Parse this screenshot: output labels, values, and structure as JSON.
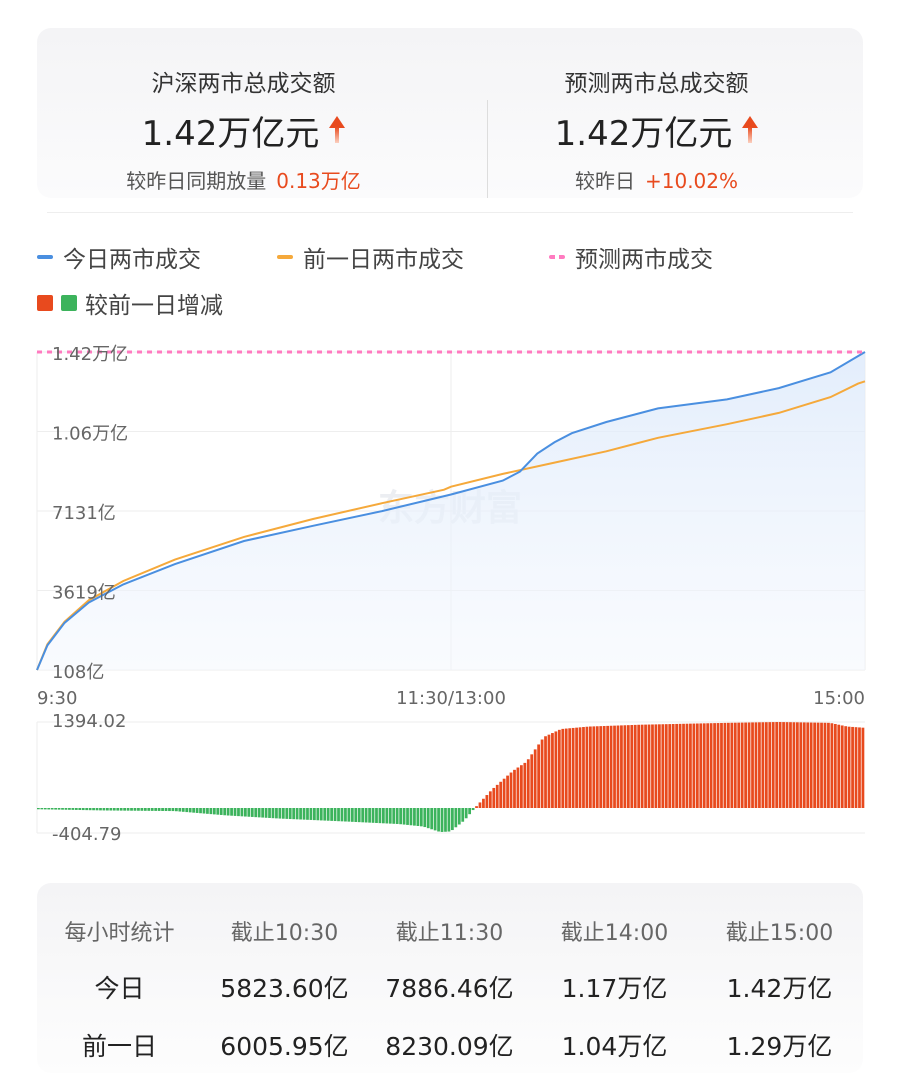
{
  "summary": {
    "left": {
      "title": "沪深两市总成交额",
      "value": "1.42万亿元",
      "compare_label": "较昨日同期放量",
      "compare_value": "0.13万亿"
    },
    "right": {
      "title": "预测两市总成交额",
      "value": "1.42万亿元",
      "compare_label": "较昨日",
      "compare_value": "+10.02%"
    }
  },
  "legend": {
    "today": "今日两市成交",
    "yesterday": "前一日两市成交",
    "forecast": "预测两市成交",
    "diff": "较前一日增减"
  },
  "colors": {
    "today": "#4a8fe0",
    "yesterday": "#f5a93b",
    "forecast": "#ff7bc0",
    "up": "#e84a1e",
    "down": "#3cb35c",
    "accent": "#e84a1e"
  },
  "watermark": "东方财富",
  "chart_data": [
    {
      "type": "line",
      "x_unit": "minutes since 9:30 (trading time)",
      "xlim": [
        0,
        240
      ],
      "x_ticks": [
        "9:30",
        "11:30/13:00",
        "15:00"
      ],
      "y_ticks": [
        "108亿",
        "3619亿",
        "7131亿",
        "1.06万亿",
        "1.42万亿"
      ],
      "ylim": [
        108,
        14200
      ],
      "y_unit": "亿",
      "grid": true,
      "forecast_value": 14200,
      "series": [
        {
          "name": "今日两市成交",
          "x": [
            0,
            3,
            8,
            15,
            25,
            40,
            60,
            80,
            100,
            120,
            135,
            140,
            145,
            150,
            155,
            165,
            180,
            200,
            215,
            230,
            240
          ],
          "values": [
            108,
            1200,
            2200,
            3100,
            3900,
            4800,
            5824,
            6500,
            7150,
            7886,
            8500,
            8900,
            9700,
            10200,
            10600,
            11100,
            11700,
            12100,
            12600,
            13300,
            14200
          ]
        },
        {
          "name": "前一日两市成交",
          "x": [
            0,
            3,
            8,
            15,
            25,
            40,
            60,
            80,
            100,
            118,
            120,
            135,
            150,
            165,
            180,
            200,
            215,
            230,
            238,
            240
          ],
          "values": [
            108,
            1250,
            2250,
            3200,
            4050,
            5000,
            6006,
            6800,
            7500,
            8100,
            8230,
            8800,
            9300,
            9800,
            10400,
            11000,
            11500,
            12200,
            12800,
            12900
          ]
        }
      ]
    },
    {
      "type": "bar",
      "name": "较前一日增减",
      "y_ticks": [
        "1394.02",
        "-404.79"
      ],
      "ylim": [
        -404.79,
        1394.02
      ],
      "x": [
        0,
        20,
        40,
        55,
        70,
        90,
        105,
        112,
        117,
        120,
        124,
        127,
        132,
        138,
        142,
        147,
        152,
        160,
        175,
        200,
        215,
        230,
        235,
        240
      ],
      "values": [
        -20,
        -40,
        -50,
        -120,
        -170,
        -220,
        -260,
        -300,
        -390,
        -380,
        -200,
        0,
        300,
        600,
        750,
        1150,
        1280,
        1320,
        1350,
        1380,
        1394,
        1380,
        1320,
        1300
      ]
    }
  ],
  "table": {
    "headers": [
      "每小时统计",
      "截止10:30",
      "截止11:30",
      "截止14:00",
      "截止15:00"
    ],
    "rows": [
      {
        "label": "今日",
        "values": [
          "5823.60亿",
          "7886.46亿",
          "1.17万亿",
          "1.42万亿"
        ]
      },
      {
        "label": "前一日",
        "values": [
          "6005.95亿",
          "8230.09亿",
          "1.04万亿",
          "1.29万亿"
        ]
      }
    ]
  }
}
